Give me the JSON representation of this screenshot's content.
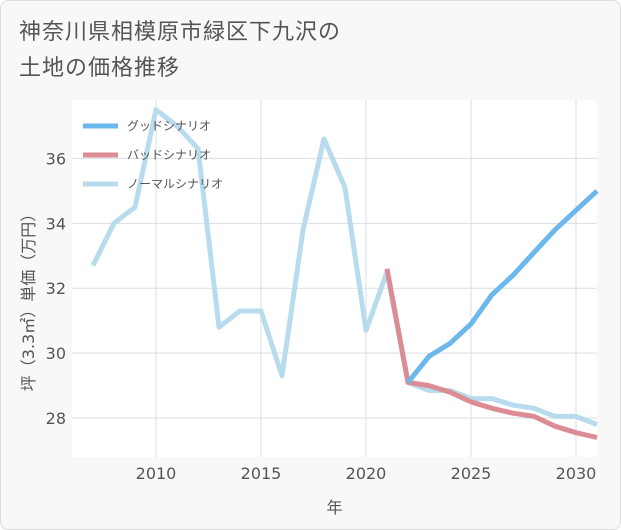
{
  "title_line1": "神奈川県相模原市緑区下九沢の",
  "title_line2": "土地の価格推移",
  "chart_data": {
    "type": "line",
    "xlabel": "年",
    "ylabel": "坪（3.3㎡）単価（万円）",
    "xlim": [
      2006,
      2031
    ],
    "ylim": [
      26.8,
      37.8
    ],
    "xticks": [
      2010,
      2015,
      2020,
      2025,
      2030
    ],
    "yticks": [
      28,
      30,
      32,
      34,
      36
    ],
    "grid": true,
    "legend_position": "top-left",
    "series": [
      {
        "name": "グッドシナリオ",
        "color": "#6cb8ec",
        "x": [
          2022,
          2023,
          2024,
          2025,
          2026,
          2027,
          2028,
          2029,
          2030,
          2031
        ],
        "y": [
          29.1,
          29.9,
          30.3,
          30.9,
          31.8,
          32.4,
          33.1,
          33.8,
          34.4,
          35.0
        ]
      },
      {
        "name": "バッドシナリオ",
        "color": "#dc8c94",
        "x": [
          2021,
          2022,
          2023,
          2024,
          2025,
          2026,
          2027,
          2028,
          2029,
          2030,
          2031
        ],
        "y": [
          32.6,
          29.1,
          29.0,
          28.8,
          28.5,
          28.3,
          28.15,
          28.05,
          27.75,
          27.55,
          27.4
        ]
      },
      {
        "name": "ノーマルシナリオ",
        "color": "#b8dcee",
        "x": [
          2007,
          2008,
          2009,
          2010,
          2011,
          2012,
          2013,
          2014,
          2015,
          2016,
          2017,
          2018,
          2019,
          2020,
          2021,
          2022,
          2023,
          2024,
          2025,
          2026,
          2027,
          2028,
          2029,
          2030,
          2031
        ],
        "y": [
          32.7,
          34.0,
          34.5,
          37.5,
          37.0,
          36.3,
          30.8,
          31.3,
          31.3,
          29.3,
          33.8,
          36.6,
          35.1,
          30.7,
          32.5,
          29.1,
          28.85,
          28.85,
          28.6,
          28.6,
          28.4,
          28.3,
          28.05,
          28.05,
          27.8
        ]
      }
    ]
  }
}
